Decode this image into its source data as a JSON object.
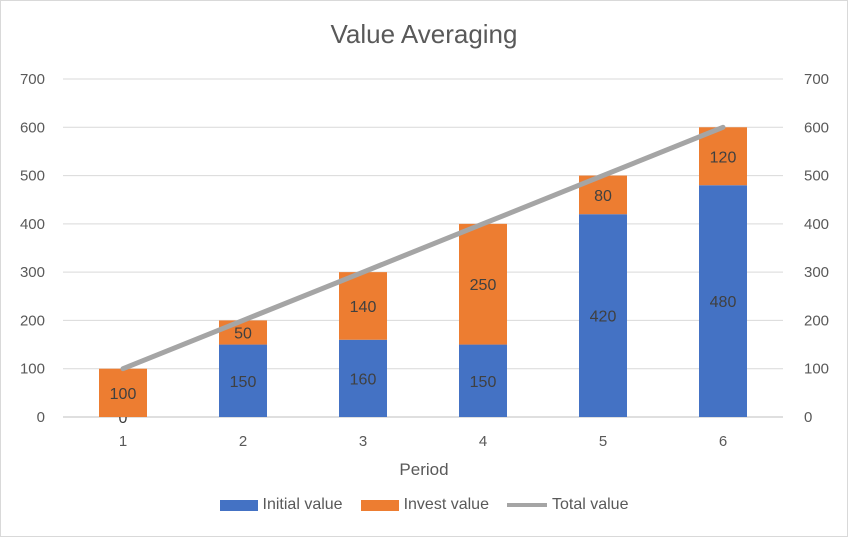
{
  "chart_data": {
    "type": "bar",
    "stacked": true,
    "title": "Value Averaging",
    "xlabel": "Period",
    "ylabel": "",
    "categories": [
      "1",
      "2",
      "3",
      "4",
      "5",
      "6"
    ],
    "ylim": [
      0,
      700
    ],
    "y2lim": [
      0,
      700
    ],
    "yticks": [
      0,
      100,
      200,
      300,
      400,
      500,
      600,
      700
    ],
    "grid": true,
    "legend_position": "bottom",
    "series": [
      {
        "name": "Initial value",
        "type": "bar",
        "color": "#4472c4",
        "values": [
          0,
          150,
          160,
          150,
          420,
          480
        ]
      },
      {
        "name": "Invest value",
        "type": "bar",
        "color": "#ed7d31",
        "values": [
          100,
          50,
          140,
          250,
          80,
          120
        ]
      },
      {
        "name": "Total value",
        "type": "line",
        "color": "#a5a5a5",
        "values": [
          100,
          200,
          300,
          400,
          500,
          600
        ]
      }
    ]
  }
}
